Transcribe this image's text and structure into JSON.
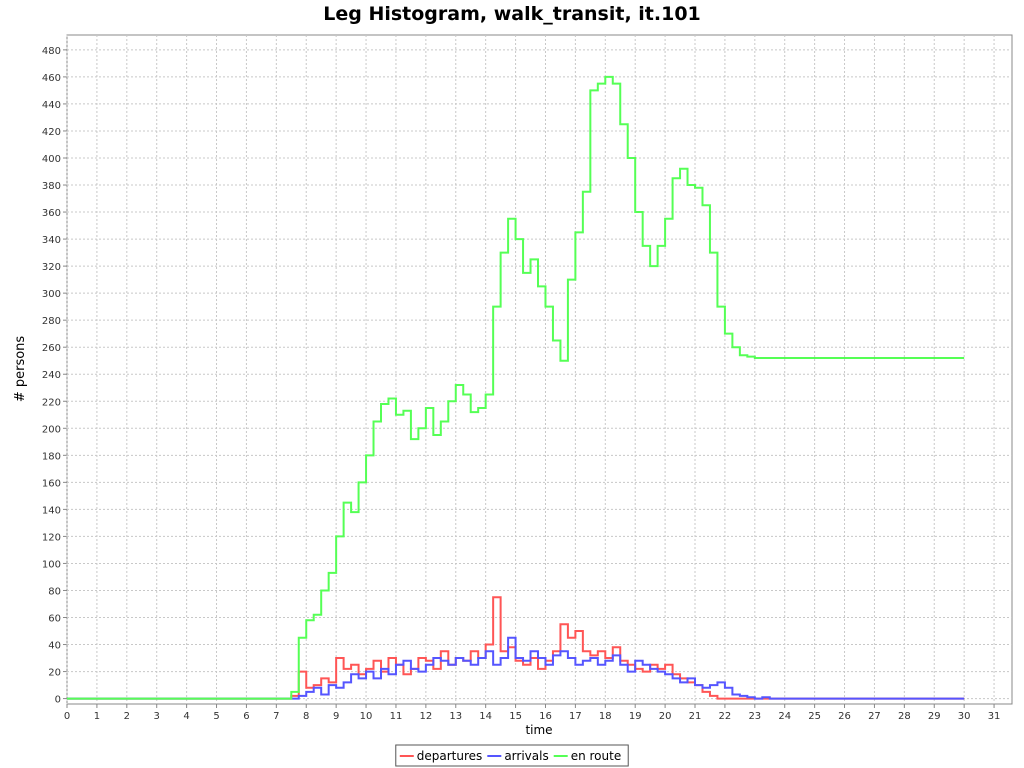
{
  "chart_data": {
    "type": "line",
    "title": "Leg Histogram, walk_transit, it.101",
    "x_label": "time",
    "y_label": "# persons",
    "x": [
      0,
      7.25,
      7.5,
      7.75,
      8,
      8.25,
      8.5,
      8.75,
      9,
      9.25,
      9.5,
      9.75,
      10,
      10.25,
      10.5,
      10.75,
      11,
      11.25,
      11.5,
      11.75,
      12,
      12.25,
      12.5,
      12.75,
      13,
      13.25,
      13.5,
      13.75,
      14,
      14.25,
      14.5,
      14.75,
      15,
      15.25,
      15.5,
      15.75,
      16,
      16.25,
      16.5,
      16.75,
      17,
      17.25,
      17.5,
      17.75,
      18,
      18.25,
      18.5,
      18.75,
      19,
      19.25,
      19.5,
      19.75,
      20,
      20.25,
      20.5,
      20.75,
      21,
      21.25,
      21.5,
      21.75,
      22,
      22.25,
      22.5,
      22.75,
      23,
      23.25,
      23.5,
      30
    ],
    "series": [
      {
        "name": "departures",
        "color": "#ff5555",
        "values": [
          0,
          0,
          2,
          20,
          8,
          10,
          15,
          12,
          30,
          22,
          25,
          18,
          22,
          28,
          20,
          30,
          25,
          18,
          22,
          30,
          28,
          22,
          35,
          25,
          30,
          28,
          35,
          30,
          40,
          75,
          35,
          38,
          28,
          25,
          30,
          22,
          28,
          35,
          55,
          45,
          50,
          35,
          32,
          35,
          30,
          38,
          28,
          25,
          22,
          20,
          25,
          22,
          25,
          18,
          15,
          12,
          10,
          5,
          2,
          0,
          0,
          0,
          0,
          0,
          0,
          0,
          0,
          0
        ]
      },
      {
        "name": "arrivals",
        "color": "#5555ff",
        "values": [
          0,
          0,
          0,
          2,
          5,
          8,
          3,
          10,
          8,
          12,
          18,
          15,
          20,
          15,
          22,
          18,
          25,
          28,
          22,
          20,
          25,
          30,
          28,
          25,
          30,
          28,
          25,
          30,
          35,
          25,
          30,
          45,
          30,
          28,
          35,
          30,
          25,
          32,
          35,
          30,
          25,
          28,
          30,
          25,
          28,
          32,
          25,
          20,
          28,
          25,
          22,
          20,
          18,
          15,
          12,
          15,
          10,
          8,
          10,
          12,
          8,
          3,
          2,
          1,
          0,
          1,
          0,
          0
        ]
      },
      {
        "name": "en route",
        "color": "#55ff55",
        "values": [
          0,
          0,
          5,
          45,
          58,
          62,
          80,
          93,
          120,
          145,
          138,
          160,
          180,
          205,
          218,
          222,
          210,
          213,
          192,
          200,
          215,
          195,
          205,
          220,
          232,
          225,
          212,
          215,
          225,
          290,
          330,
          355,
          340,
          315,
          325,
          305,
          290,
          265,
          250,
          310,
          345,
          375,
          450,
          455,
          460,
          455,
          425,
          400,
          360,
          335,
          320,
          335,
          355,
          385,
          392,
          380,
          378,
          365,
          330,
          290,
          270,
          260,
          254,
          253,
          252,
          252,
          252,
          252
        ]
      }
    ],
    "xlim": [
      0,
      31.6
    ],
    "ylim": [
      -4,
      491
    ],
    "xticks": [
      0,
      1,
      2,
      3,
      4,
      5,
      6,
      7,
      8,
      9,
      10,
      11,
      12,
      13,
      14,
      15,
      16,
      17,
      18,
      19,
      20,
      21,
      22,
      23,
      24,
      25,
      26,
      27,
      28,
      29,
      30,
      31
    ],
    "yticks": [
      0,
      20,
      40,
      60,
      80,
      100,
      120,
      140,
      160,
      180,
      200,
      220,
      240,
      260,
      280,
      300,
      320,
      340,
      360,
      380,
      400,
      420,
      440,
      460,
      480
    ],
    "grid": true,
    "legend": "bottom"
  }
}
